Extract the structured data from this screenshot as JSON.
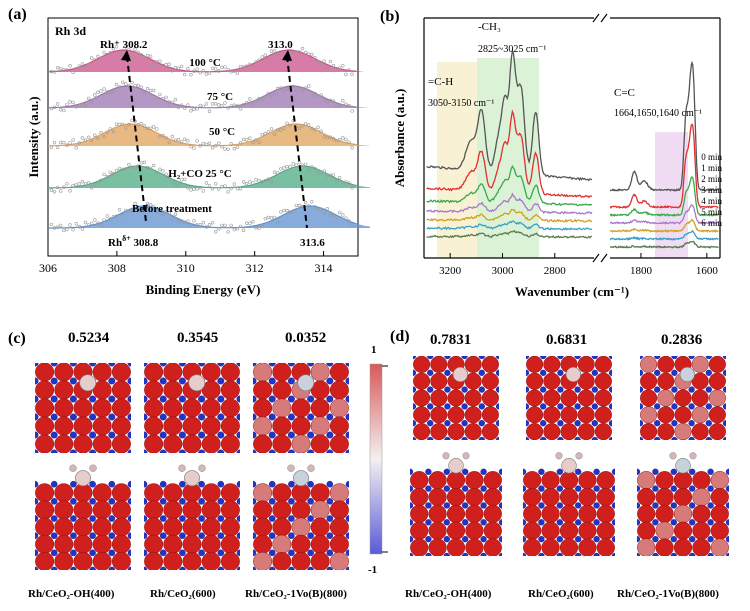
{
  "figure": {
    "panel_a": {
      "label": "(a)",
      "corner_tag": "Rh 3d",
      "annotations": {
        "rh_plus": "Rh⁺ 308.2",
        "rh_plus_right": "313.0",
        "rh_delta": "Rh",
        "rh_delta_sup": "δ+",
        "rh_delta_val": " 308.8",
        "rh_delta_right": "313.6"
      }
    },
    "panel_b": {
      "label": "(b)",
      "annotations": {
        "ch": "=C-H",
        "ch_range": "3050-3150 cm⁻¹",
        "ch3": "-CH₃",
        "ch3_range": "2825~3025 cm⁻¹",
        "cc": "C=C",
        "cc_range": "1664,1650,1640 cm⁻¹"
      }
    },
    "panel_c": {
      "label": "(c)",
      "values": [
        "0.5234",
        "0.3545",
        "0.0352"
      ],
      "captions": [
        "Rh/CeO₂-OH(400)",
        "Rh/CeO₂(600)",
        "Rh/CeO₂-1Vo(B)(800)"
      ],
      "colorbar_max": "1",
      "colorbar_min": "-1"
    },
    "panel_d": {
      "label": "(d)",
      "values": [
        "0.7831",
        "0.6831",
        "0.2836"
      ],
      "captions": [
        "Rh/CeO₂-OH(400)",
        "Rh/CeO₂(600)",
        "Rh/CeO₂-1Vo(B)(800)"
      ]
    }
  },
  "chart_data": [
    {
      "type": "line",
      "panel": "(a)",
      "title": "Rh 3d",
      "xlabel": "Binding Energy (eV)",
      "ylabel": "Intensity (a.u.)",
      "xlim": [
        306,
        315
      ],
      "x_reversed": false,
      "xticks": [
        "306",
        "308",
        "310",
        "312",
        "314"
      ],
      "series": [
        {
          "name": "100 °C",
          "peak1": 308.2,
          "peak2": 313.0,
          "color": "#c9508a"
        },
        {
          "name": "75 °C",
          "peak1": 308.3,
          "peak2": 313.1,
          "color": "#9b74b0"
        },
        {
          "name": "50 °C",
          "peak1": 308.4,
          "peak2": 313.2,
          "color": "#e0a25a"
        },
        {
          "name": "H₂+CO 25 °C",
          "peak1": 308.6,
          "peak2": 313.4,
          "color": "#4faa84"
        },
        {
          "name": "Before treatment",
          "peak1": 308.8,
          "peak2": 313.6,
          "color": "#5f8fcf"
        }
      ]
    },
    {
      "type": "line",
      "panel": "(b)",
      "xlabel": "Wavenumber (cm⁻¹)",
      "ylabel": "Absorbance (a.u.)",
      "x_reversed": true,
      "xticks": [
        "3200",
        "3000",
        "2800",
        "1800",
        "1600"
      ],
      "xlim_left": [
        3300,
        2650
      ],
      "xlim_right": [
        1900,
        1560
      ],
      "series": [
        {
          "name": "0 min",
          "color": "#555555"
        },
        {
          "name": "1 min",
          "color": "#e03030"
        },
        {
          "name": "2 min",
          "color": "#3aa84a"
        },
        {
          "name": "3 min",
          "color": "#a879c9"
        },
        {
          "name": "4 min",
          "color": "#d4a020"
        },
        {
          "name": "5 min",
          "color": "#3a9fc0"
        },
        {
          "name": "6 min",
          "color": "#5a7a50"
        }
      ]
    }
  ]
}
